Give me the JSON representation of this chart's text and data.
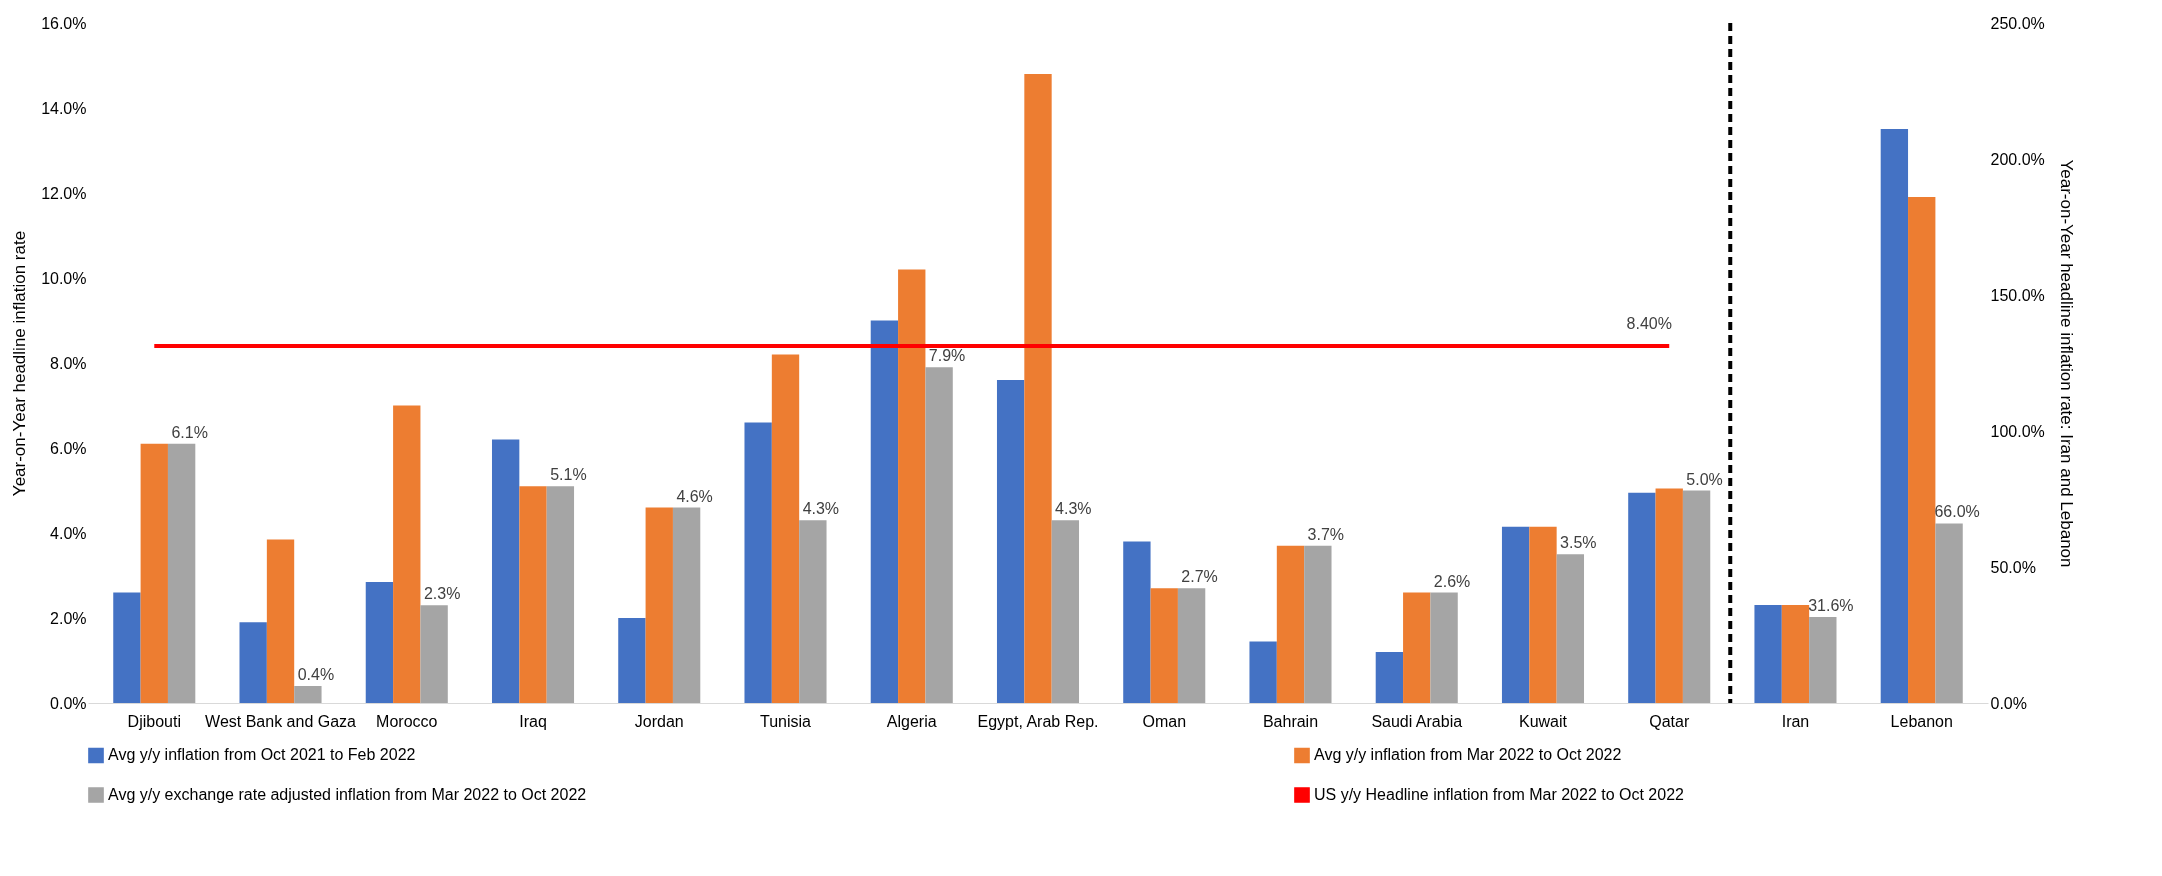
{
  "chart_data": {
    "type": "bar",
    "categories": [
      "Djibouti",
      "West Bank and Gaza",
      "Morocco",
      "Iraq",
      "Jordan",
      "Tunisia",
      "Algeria",
      "Egypt, Arab Rep.",
      "Oman",
      "Bahrain",
      "Saudi Arabia",
      "Kuwait",
      "Qatar",
      "Iran",
      "Lebanon"
    ],
    "ylabel": "Year-on-Year headline inflation rate",
    "y2label": "Year-on-Year headline inflation rate: Iran and Lebanon",
    "series": [
      {
        "name": "Avg y/y inflation from Oct 2021 to Feb 2022",
        "color": "#4472c4",
        "values": [
          2.6,
          1.9,
          2.85,
          6.2,
          2.0,
          6.6,
          9.0,
          7.6,
          3.8,
          1.45,
          1.2,
          4.15,
          4.95,
          null,
          null
        ]
      },
      {
        "name": "Avg y/y  inflation from Mar 2022 to Oct 2022",
        "color": "#ed7d31",
        "values": [
          6.1,
          3.85,
          7.0,
          5.1,
          4.6,
          8.2,
          10.2,
          14.8,
          2.7,
          3.7,
          2.6,
          4.15,
          5.05,
          null,
          null
        ]
      },
      {
        "name": "Avg y/y exchange rate adjusted inflation  from Mar 2022 to Oct 2022",
        "color": "#a5a5a5",
        "values": [
          6.1,
          0.4,
          2.3,
          5.1,
          4.6,
          4.3,
          7.9,
          4.3,
          2.7,
          3.7,
          2.6,
          3.5,
          5.0,
          null,
          null
        ],
        "value_labels": [
          "6.1%",
          "0.4%",
          "2.3%",
          "5.1%",
          "4.6%",
          "4.3%",
          "7.9%",
          "4.3%",
          "2.7%",
          "3.7%",
          "2.6%",
          "3.5%",
          "5.0%",
          null,
          null
        ]
      },
      {
        "color": "#4472c4",
        "axis": "y2",
        "values": [
          null,
          null,
          null,
          null,
          null,
          null,
          null,
          null,
          null,
          null,
          null,
          null,
          null,
          36,
          211
        ]
      },
      {
        "color": "#ed7d31",
        "axis": "y2",
        "values": [
          null,
          null,
          null,
          null,
          null,
          null,
          null,
          null,
          null,
          null,
          null,
          null,
          null,
          36,
          186
        ]
      },
      {
        "color": "#a5a5a5",
        "axis": "y2",
        "values": [
          null,
          null,
          null,
          null,
          null,
          null,
          null,
          null,
          null,
          null,
          null,
          null,
          null,
          31.6,
          66.0
        ],
        "value_labels": [
          null,
          null,
          null,
          null,
          null,
          null,
          null,
          null,
          null,
          null,
          null,
          null,
          null,
          "31.6%",
          "66.0%"
        ]
      }
    ],
    "ylim": [
      0,
      16
    ],
    "yticks": [
      {
        "value": 0,
        "label": "0.0%"
      },
      {
        "value": 2,
        "label": "2.0%"
      },
      {
        "value": 4,
        "label": "4.0%"
      },
      {
        "value": 6,
        "label": "6.0%"
      },
      {
        "value": 8,
        "label": "8.0%"
      },
      {
        "value": 10,
        "label": "10.0%"
      },
      {
        "value": 12,
        "label": "12.0%"
      },
      {
        "value": 14,
        "label": "14.0%"
      },
      {
        "value": 16,
        "label": "16.0%"
      }
    ],
    "y2lim": [
      0,
      250
    ],
    "y2ticks": [
      {
        "value": 0,
        "label": "0.0%"
      },
      {
        "value": 50,
        "label": "50.0%"
      },
      {
        "value": 100,
        "label": "100.0%"
      },
      {
        "value": 150,
        "label": "150.0%"
      },
      {
        "value": 200,
        "label": "200.0%"
      },
      {
        "value": 250,
        "label": "250.0%"
      }
    ],
    "ref_lines": [
      {
        "axis": "y",
        "value": 8.4,
        "label": "US y/y Headline inflation from Mar 2022 to Oct 2022",
        "color": "#ff0000"
      }
    ],
    "annotations": [
      {
        "text": "8.40%",
        "x": "Qatar",
        "y": 8.4
      }
    ],
    "legend": "bottom",
    "grid": false
  }
}
